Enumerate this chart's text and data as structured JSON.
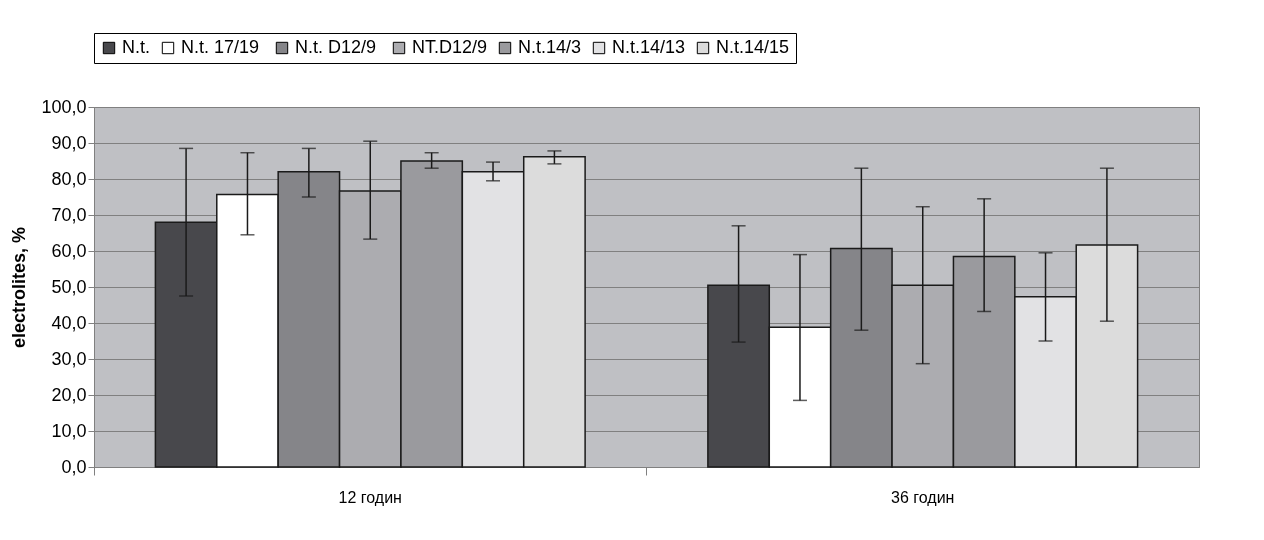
{
  "chart_data": {
    "type": "bar",
    "ylabel": "electrolites, %",
    "categories": [
      "12 годин",
      "36 годин"
    ],
    "series": [
      {
        "name": "N.t.",
        "color": "#48484c",
        "values": [
          68.0,
          50.5
        ],
        "errors": [
          [
            47.5,
            88.5
          ],
          [
            34.7,
            67.0
          ]
        ]
      },
      {
        "name": "N.t.  17/19",
        "color": "#ffffff",
        "values": [
          75.7,
          38.8
        ],
        "errors": [
          [
            64.5,
            87.3
          ],
          [
            18.5,
            59.0
          ]
        ]
      },
      {
        "name": "N.t.  D12/9",
        "color": "#858589",
        "values": [
          82.0,
          60.7
        ],
        "errors": [
          [
            75.0,
            88.5
          ],
          [
            38.0,
            83.0
          ]
        ]
      },
      {
        "name": "NT.D12/9",
        "color": "#acacb0",
        "values": [
          76.7,
          50.5
        ],
        "errors": [
          [
            63.3,
            90.5
          ],
          [
            28.7,
            72.3
          ]
        ]
      },
      {
        "name": "N.t.14/3",
        "color": "#9a9a9e",
        "values": [
          85.0,
          58.5
        ],
        "errors": [
          [
            83.0,
            87.3
          ],
          [
            43.2,
            74.5
          ]
        ]
      },
      {
        "name": "N.t.14/13",
        "color": "#e2e2e4",
        "values": [
          82.0,
          47.3
        ],
        "errors": [
          [
            79.5,
            84.7
          ],
          [
            35.0,
            59.5
          ]
        ]
      },
      {
        "name": "N.t.14/15",
        "color": "#dcdcdc",
        "values": [
          86.2,
          61.7
        ],
        "errors": [
          [
            84.2,
            87.8
          ],
          [
            40.5,
            83.0
          ]
        ]
      }
    ],
    "ylim": [
      0,
      100
    ],
    "yticks": [
      {
        "value": 0,
        "label": "0,0"
      },
      {
        "value": 10,
        "label": "10,0"
      },
      {
        "value": 20,
        "label": "20,0"
      },
      {
        "value": 30,
        "label": "30,0"
      },
      {
        "value": 40,
        "label": "40,0"
      },
      {
        "value": 50,
        "label": "50,0"
      },
      {
        "value": 60,
        "label": "60,0"
      },
      {
        "value": 70,
        "label": "70,0"
      },
      {
        "value": 80,
        "label": "80,0"
      },
      {
        "value": 90,
        "label": "90,0"
      },
      {
        "value": 100,
        "label": "100,0"
      }
    ],
    "grid": "y",
    "legend": "top"
  }
}
